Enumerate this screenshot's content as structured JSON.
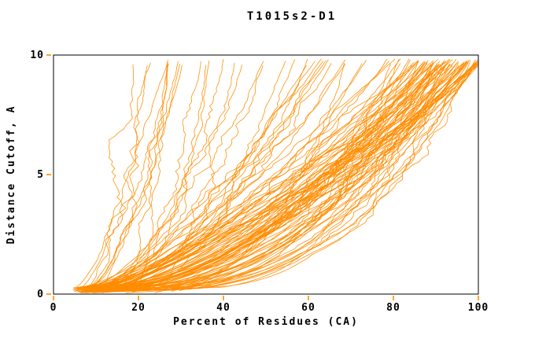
{
  "page": {
    "background": "#ffffff"
  },
  "chart_data": {
    "type": "line",
    "title": "T1015s2-D1",
    "xlabel": "Percent of Residues (CA)",
    "ylabel": "Distance Cutoff, A",
    "xlim": [
      0,
      100
    ],
    "ylim": [
      0,
      10
    ],
    "x_ticks": [
      0,
      20,
      40,
      60,
      80,
      100
    ],
    "y_ticks": [
      0,
      5,
      10
    ],
    "grid": false,
    "legend": null,
    "curve_color": "#ff8c00",
    "frame_color": "#000000",
    "text_color": "#000000",
    "tick_color": "#ff8c00",
    "description": "Cumulative GDT-style plot: each orange curve is one predicted model, showing percent of CA residues within a given distance cutoff. Roughly 100+ overlapping curves fan out from ~5% at cutoff 0 to endpoints between ~17% and 100% at cutoff ~9.8 A, with a dense mass of curves ending between 80-100%.",
    "curve_generation": {
      "count": 118,
      "seed": 1015,
      "points_per_curve": 64,
      "y_start_range": [
        0.05,
        0.3
      ],
      "y_end_range": [
        9.55,
        9.85
      ],
      "x_bottom_primary_range": [
        4.5,
        11.5
      ],
      "x_bottom_outlier_range": [
        8,
        30
      ],
      "x_bottom_outlier_fraction": 0.2,
      "x_top_buckets": [
        {
          "fraction": 0.07,
          "range": [
            16,
            28
          ],
          "skew_to_high": false
        },
        {
          "fraction": 0.23,
          "range": [
            28,
            75
          ],
          "skew_to_high": false
        },
        {
          "fraction": 0.7,
          "range": [
            78,
            100
          ],
          "skew_to_high": true
        }
      ],
      "shape_exponent_range": [
        0.28,
        0.78
      ],
      "wiggle_amplitude_range": [
        1.0,
        2.8
      ]
    }
  }
}
